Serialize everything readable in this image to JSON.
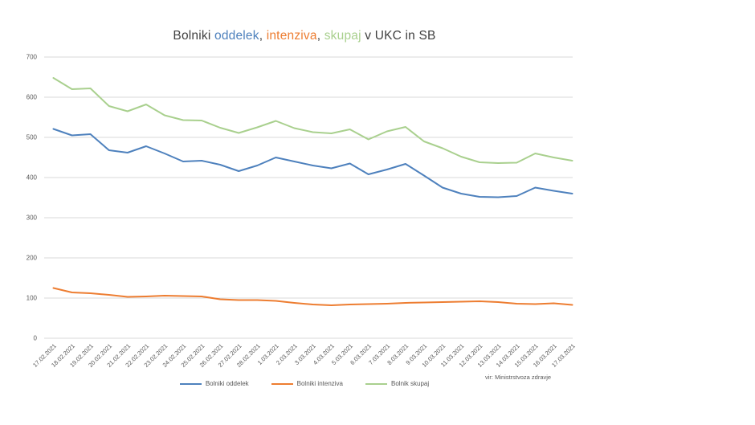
{
  "title": {
    "parts": [
      {
        "text": "Bolniki ",
        "color": "#3f3f3f"
      },
      {
        "text": "oddelek",
        "color": "#4e81bd"
      },
      {
        "text": ", ",
        "color": "#3f3f3f"
      },
      {
        "text": "intenziva",
        "color": "#ed7d31"
      },
      {
        "text": ", ",
        "color": "#3f3f3f"
      },
      {
        "text": "skupaj",
        "color": "#a9d08e"
      },
      {
        "text": " v UKC in SB",
        "color": "#3f3f3f"
      }
    ]
  },
  "legend": {
    "items": [
      {
        "label": "Bolniki oddelek",
        "color": "#4e81bd"
      },
      {
        "label": "Bolniki intenziva",
        "color": "#ed7d31"
      },
      {
        "label": "Bolnik skupaj",
        "color": "#a9d08e"
      }
    ]
  },
  "source_note": "vir: Ministrstvoza zdravje",
  "chart_data": {
    "type": "line",
    "title": "Bolniki oddelek, intenziva, skupaj v UKC in SB",
    "categories": [
      "17.02.2021",
      "18.02.2021",
      "19.02.2021",
      "20.02.2021",
      "21.02.2021",
      "22.02.2021",
      "23.02.2021",
      "24.02.2021",
      "25.02.2021",
      "26.02.2021",
      "27.02.2021",
      "28.02.2021",
      "1.03.2021",
      "2.03.2021",
      "3.03.2021",
      "4.03.2021",
      "5.03.2021",
      "6.03.2021",
      "7.03.2021",
      "8.03.2021",
      "9.03.2021",
      "10.03.2021",
      "11.03.2021",
      "12.03.2021",
      "13.03.2021",
      "14.03.2021",
      "15.03.2021",
      "16.03.2021",
      "17.03.2021"
    ],
    "series": [
      {
        "name": "Bolniki oddelek",
        "color": "#4e81bd",
        "values": [
          521,
          505,
          508,
          468,
          462,
          478,
          460,
          440,
          442,
          432,
          416,
          430,
          450,
          440,
          430,
          423,
          435,
          408,
          420,
          434,
          405,
          375,
          360,
          352,
          351,
          354,
          375,
          367,
          360
        ]
      },
      {
        "name": "Bolniki intenziva",
        "color": "#ed7d31",
        "values": [
          125,
          114,
          112,
          108,
          103,
          104,
          106,
          105,
          104,
          97,
          95,
          95,
          93,
          88,
          84,
          82,
          84,
          85,
          86,
          88,
          89,
          90,
          91,
          92,
          90,
          86,
          85,
          87,
          83
        ]
      },
      {
        "name": "Bolnik skupaj",
        "color": "#a9d08e",
        "values": [
          648,
          620,
          622,
          578,
          565,
          582,
          555,
          543,
          542,
          524,
          511,
          525,
          541,
          523,
          513,
          510,
          520,
          495,
          515,
          526,
          490,
          473,
          452,
          438,
          436,
          437,
          460,
          450,
          442
        ]
      }
    ],
    "xlabel": "",
    "ylabel": "",
    "ylim": [
      0,
      700
    ],
    "y_ticks": [
      0,
      100,
      200,
      300,
      400,
      500,
      600,
      700
    ],
    "grid": "horizontal",
    "gridline_color": "#d9d9d9",
    "tick_label_color": "#595959",
    "legend_position": "bottom"
  }
}
